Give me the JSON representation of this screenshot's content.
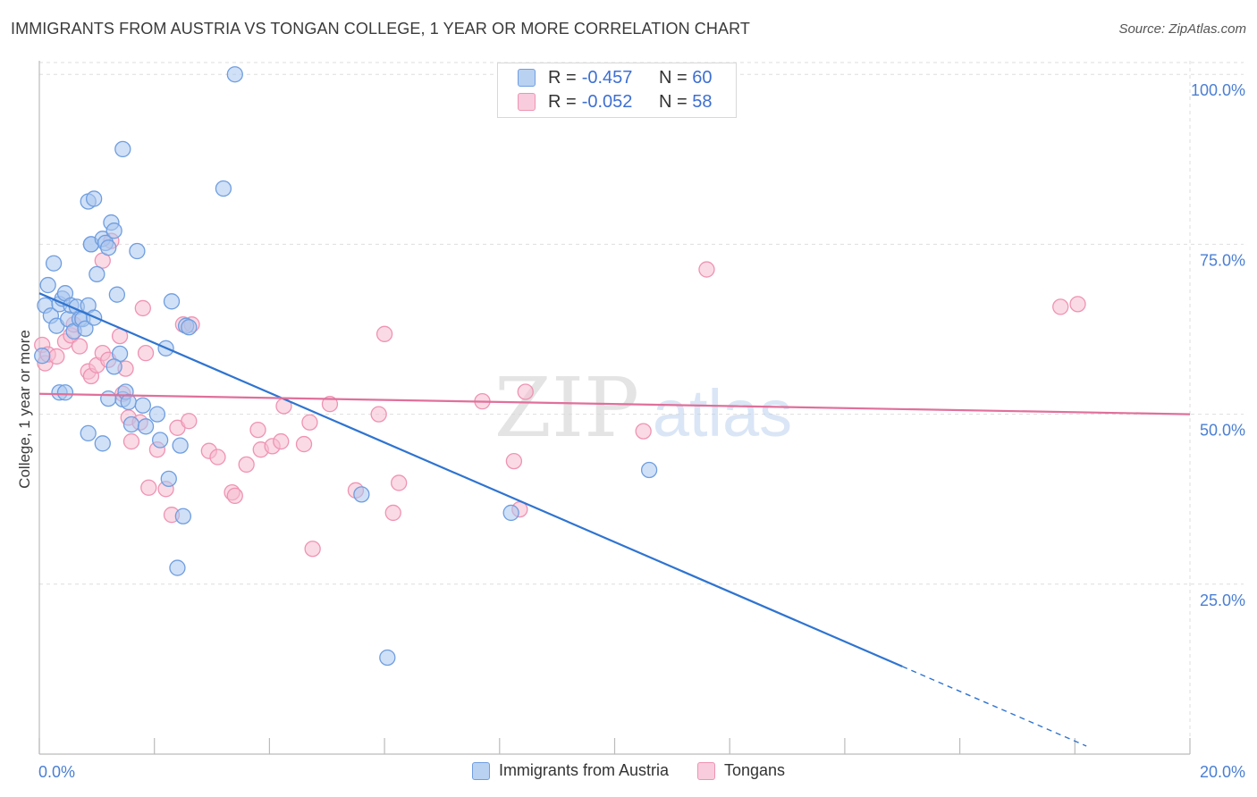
{
  "header": {
    "title": "IMMIGRANTS FROM AUSTRIA VS TONGAN COLLEGE, 1 YEAR OR MORE CORRELATION CHART",
    "source": "Source: ZipAtlas.com"
  },
  "watermark": {
    "zip": "ZIP",
    "atlas": "atlas"
  },
  "legend_stats": {
    "rows": [
      {
        "r_label": "R =",
        "r_value": "-0.457",
        "n_label": "N =",
        "n_value": "60"
      },
      {
        "r_label": "R =",
        "r_value": "-0.052",
        "n_label": "N =",
        "n_value": "58"
      }
    ]
  },
  "colors": {
    "austria_fill": "#a9c6ee",
    "austria_stroke": "#6f9ee0",
    "austria_line": "#2f74d0",
    "tongan_fill": "#f6bcd0",
    "tongan_stroke": "#ef93b3",
    "tongan_line": "#e0709a",
    "grid": "#dedede",
    "tick_label": "#4a7fd4"
  },
  "chart_data": {
    "type": "scatter",
    "title": "IMMIGRANTS FROM AUSTRIA VS TONGAN COLLEGE, 1 YEAR OR MORE CORRELATION CHART",
    "xlabel": "",
    "ylabel": "College, 1 year or more",
    "xlim": [
      0,
      20
    ],
    "ylim": [
      0,
      102
    ],
    "x_tick_labels": [
      "0.0%",
      "20.0%"
    ],
    "y_ticks": [
      25,
      50,
      75,
      100
    ],
    "y_tick_labels": [
      "25.0%",
      "50.0%",
      "75.0%",
      "100.0%"
    ],
    "series": [
      {
        "name": "Immigrants from Austria",
        "r": -0.457,
        "n": 60,
        "trend": {
          "x0": 0.0,
          "y0": 67.8,
          "x1": 15.0,
          "y1": 12.9,
          "dash_to_x": 18.2
        },
        "points": [
          [
            0.05,
            58.6
          ],
          [
            0.1,
            66.0
          ],
          [
            0.15,
            69.0
          ],
          [
            0.2,
            64.5
          ],
          [
            0.25,
            72.2
          ],
          [
            0.3,
            63.0
          ],
          [
            0.35,
            66.2
          ],
          [
            0.4,
            67.0
          ],
          [
            0.45,
            67.8
          ],
          [
            0.5,
            64.0
          ],
          [
            0.55,
            66.0
          ],
          [
            0.6,
            62.2
          ],
          [
            0.65,
            65.8
          ],
          [
            0.7,
            64.0
          ],
          [
            0.75,
            64.0
          ],
          [
            0.8,
            62.6
          ],
          [
            0.85,
            66.0
          ],
          [
            0.9,
            75.0
          ],
          [
            0.95,
            64.2
          ],
          [
            0.35,
            53.2
          ],
          [
            0.85,
            81.3
          ],
          [
            0.95,
            81.7
          ],
          [
            0.9,
            75.0
          ],
          [
            1.0,
            70.6
          ],
          [
            1.1,
            75.8
          ],
          [
            1.15,
            75.2
          ],
          [
            1.2,
            74.5
          ],
          [
            1.25,
            78.2
          ],
          [
            1.3,
            77.0
          ],
          [
            1.35,
            67.6
          ],
          [
            1.4,
            58.9
          ],
          [
            1.45,
            52.2
          ],
          [
            1.5,
            53.3
          ],
          [
            1.55,
            51.8
          ],
          [
            1.6,
            48.5
          ],
          [
            1.7,
            74.0
          ],
          [
            1.8,
            51.3
          ],
          [
            1.85,
            48.2
          ],
          [
            2.3,
            66.6
          ],
          [
            2.2,
            59.7
          ],
          [
            2.05,
            50.0
          ],
          [
            2.1,
            46.2
          ],
          [
            2.25,
            40.5
          ],
          [
            2.4,
            27.4
          ],
          [
            2.45,
            45.4
          ],
          [
            2.5,
            35.0
          ],
          [
            2.55,
            63.0
          ],
          [
            2.6,
            62.8
          ],
          [
            1.45,
            89.0
          ],
          [
            3.4,
            100.0
          ],
          [
            3.2,
            83.2
          ],
          [
            1.3,
            57.0
          ],
          [
            1.2,
            52.3
          ],
          [
            1.1,
            45.7
          ],
          [
            0.85,
            47.2
          ],
          [
            5.6,
            38.2
          ],
          [
            6.05,
            14.2
          ],
          [
            8.2,
            35.5
          ],
          [
            10.6,
            41.8
          ],
          [
            0.45,
            53.2
          ]
        ]
      },
      {
        "name": "Tongans",
        "r": -0.052,
        "n": 58,
        "trend": {
          "x0": 0.0,
          "y0": 53.0,
          "x1": 20.0,
          "y1": 50.0
        },
        "points": [
          [
            0.05,
            60.2
          ],
          [
            0.1,
            57.5
          ],
          [
            0.15,
            58.8
          ],
          [
            0.3,
            58.5
          ],
          [
            0.45,
            60.7
          ],
          [
            0.55,
            61.6
          ],
          [
            0.6,
            63.2
          ],
          [
            0.7,
            60.0
          ],
          [
            0.85,
            56.3
          ],
          [
            0.9,
            55.6
          ],
          [
            1.0,
            57.2
          ],
          [
            1.1,
            59.0
          ],
          [
            1.2,
            58.0
          ],
          [
            1.25,
            75.5
          ],
          [
            1.1,
            72.6
          ],
          [
            1.4,
            61.5
          ],
          [
            1.5,
            56.7
          ],
          [
            1.45,
            53.0
          ],
          [
            1.55,
            49.5
          ],
          [
            1.6,
            46.0
          ],
          [
            1.75,
            48.8
          ],
          [
            1.8,
            65.6
          ],
          [
            1.85,
            59.0
          ],
          [
            1.9,
            39.2
          ],
          [
            2.05,
            44.8
          ],
          [
            2.2,
            39.0
          ],
          [
            2.3,
            35.2
          ],
          [
            2.4,
            48.0
          ],
          [
            2.5,
            63.2
          ],
          [
            2.6,
            49.0
          ],
          [
            2.65,
            63.2
          ],
          [
            2.95,
            44.6
          ],
          [
            3.1,
            43.7
          ],
          [
            3.35,
            38.5
          ],
          [
            3.4,
            38.0
          ],
          [
            3.6,
            42.6
          ],
          [
            3.8,
            47.7
          ],
          [
            3.85,
            44.8
          ],
          [
            4.05,
            45.3
          ],
          [
            4.2,
            46.0
          ],
          [
            4.25,
            51.2
          ],
          [
            4.6,
            45.6
          ],
          [
            4.7,
            48.8
          ],
          [
            5.05,
            51.5
          ],
          [
            4.75,
            30.2
          ],
          [
            5.5,
            38.8
          ],
          [
            5.9,
            50.0
          ],
          [
            6.0,
            61.8
          ],
          [
            6.15,
            35.5
          ],
          [
            6.25,
            39.9
          ],
          [
            7.7,
            51.9
          ],
          [
            8.25,
            43.1
          ],
          [
            8.45,
            53.3
          ],
          [
            8.35,
            36.0
          ],
          [
            10.5,
            47.5
          ],
          [
            11.6,
            71.3
          ],
          [
            17.75,
            65.8
          ],
          [
            18.05,
            66.2
          ]
        ]
      }
    ]
  }
}
